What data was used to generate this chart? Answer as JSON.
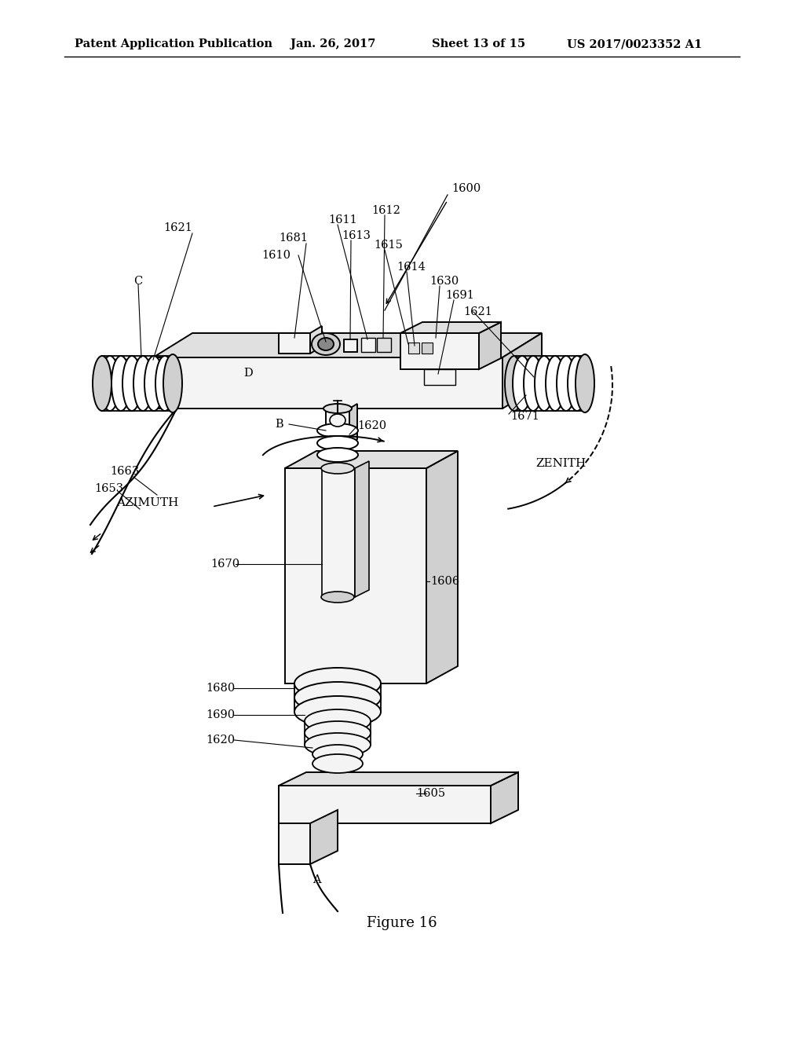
{
  "header_left": "Patent Application Publication",
  "header_date": "Jan. 26, 2017",
  "header_sheet": "Sheet 13 of 15",
  "header_patent": "US 2017/0023352 A1",
  "figure_label": "Figure 16",
  "bg": "#ffffff",
  "lc": "#000000"
}
